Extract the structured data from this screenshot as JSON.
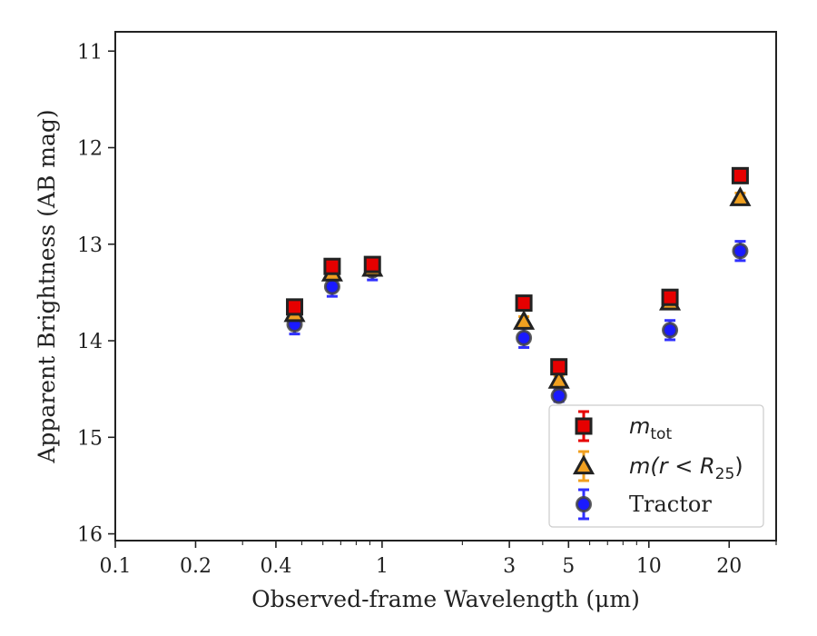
{
  "chart_data": {
    "type": "scatter",
    "xlabel": "Observed-frame Wavelength (μm)",
    "ylabel": "Apparent Brightness (AB mag)",
    "x_scale": "log",
    "xlim": [
      0.1,
      30
    ],
    "ylim": [
      16.07,
      10.8
    ],
    "y_inverted": true,
    "x_ticks": [
      {
        "value": 0.1,
        "label": "0.1"
      },
      {
        "value": 0.2,
        "label": "0.2"
      },
      {
        "value": 0.4,
        "label": "0.4"
      },
      {
        "value": 1,
        "label": "1"
      },
      {
        "value": 3,
        "label": "3"
      },
      {
        "value": 5,
        "label": "5"
      },
      {
        "value": 10,
        "label": "10"
      },
      {
        "value": 20,
        "label": "20"
      }
    ],
    "y_ticks": [
      {
        "value": 11,
        "label": "11"
      },
      {
        "value": 12,
        "label": "12"
      },
      {
        "value": 13,
        "label": "13"
      },
      {
        "value": 14,
        "label": "14"
      },
      {
        "value": 15,
        "label": "15"
      },
      {
        "value": 16,
        "label": "16"
      }
    ],
    "grid": false,
    "legend_position": "lower-right",
    "series": [
      {
        "name": "m_tot",
        "legend_main": "m",
        "legend_sub": "tot",
        "marker": "square",
        "face_color": "#e60000",
        "edge_color": "#222222",
        "err_color": "#e60000",
        "points": [
          {
            "x": 0.47,
            "y": 13.65,
            "err": 0.07
          },
          {
            "x": 0.65,
            "y": 13.23,
            "err": 0.07
          },
          {
            "x": 0.92,
            "y": 13.21,
            "err": 0.07
          },
          {
            "x": 3.4,
            "y": 13.61,
            "err": 0.07
          },
          {
            "x": 4.6,
            "y": 14.27,
            "err": 0.07
          },
          {
            "x": 12.0,
            "y": 13.55,
            "err": 0.07
          },
          {
            "x": 22.0,
            "y": 12.29,
            "err": 0.07
          }
        ]
      },
      {
        "name": "m(r < R_25)",
        "legend_main": "m(r < R",
        "legend_sub": "25",
        "legend_tail": ")",
        "marker": "triangle",
        "face_color": "#f0a020",
        "edge_color": "#222222",
        "err_color": "#f0a020",
        "points": [
          {
            "x": 0.47,
            "y": 13.72,
            "err": 0.05
          },
          {
            "x": 0.65,
            "y": 13.3,
            "err": 0.05
          },
          {
            "x": 0.92,
            "y": 13.25,
            "err": 0.05
          },
          {
            "x": 3.4,
            "y": 13.8,
            "err": 0.05
          },
          {
            "x": 4.6,
            "y": 14.41,
            "err": 0.05
          },
          {
            "x": 12.0,
            "y": 13.6,
            "err": 0.05
          },
          {
            "x": 22.0,
            "y": 12.52,
            "err": 0.05
          }
        ]
      },
      {
        "name": "Tractor",
        "legend_main": "Tractor",
        "marker": "circle",
        "face_color": "#1a1aff",
        "edge_color": "#444444",
        "err_color": "#3030ff",
        "points": [
          {
            "x": 0.47,
            "y": 13.83,
            "err": 0.1
          },
          {
            "x": 0.65,
            "y": 13.44,
            "err": 0.1
          },
          {
            "x": 0.92,
            "y": 13.27,
            "err": 0.1
          },
          {
            "x": 3.4,
            "y": 13.97,
            "err": 0.1
          },
          {
            "x": 4.6,
            "y": 14.57,
            "err": 0.06
          },
          {
            "x": 12.0,
            "y": 13.89,
            "err": 0.1
          },
          {
            "x": 22.0,
            "y": 13.07,
            "err": 0.1
          }
        ]
      }
    ]
  }
}
